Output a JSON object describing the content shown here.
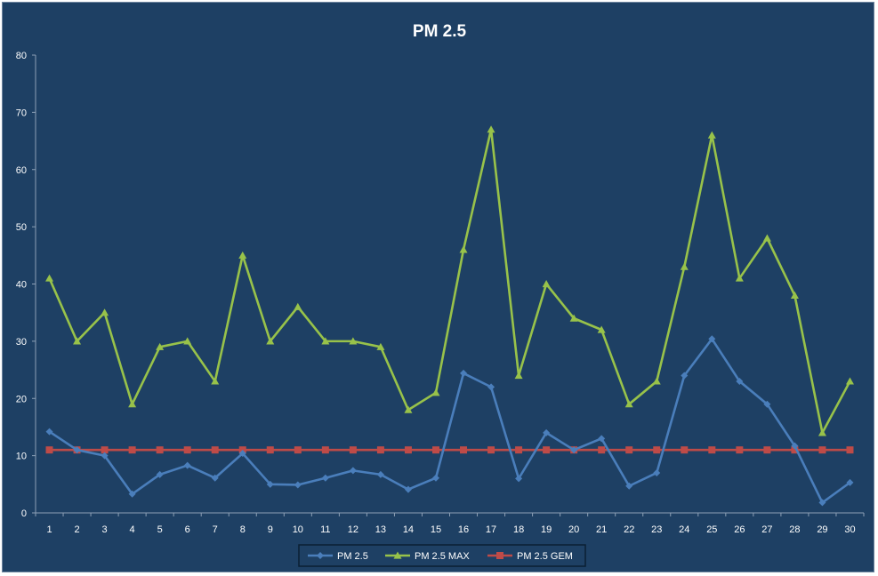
{
  "chart_data": {
    "type": "line",
    "title": "PM 2.5",
    "xlabel": "",
    "ylabel": "",
    "ylim": [
      0,
      80
    ],
    "yticks": [
      0,
      10,
      20,
      30,
      40,
      50,
      60,
      70,
      80
    ],
    "x": [
      1,
      2,
      3,
      4,
      5,
      6,
      7,
      8,
      9,
      10,
      11,
      12,
      13,
      14,
      15,
      16,
      17,
      18,
      19,
      20,
      21,
      22,
      23,
      24,
      25,
      26,
      27,
      28,
      29,
      30
    ],
    "grid": false,
    "legend_position": "bottom",
    "series": [
      {
        "name": "PM 2.5",
        "color": "#4a7ebb",
        "marker": "diamond",
        "values": [
          14.2,
          11,
          10,
          3.3,
          6.7,
          8.3,
          6.1,
          10.4,
          5,
          4.9,
          6.1,
          7.4,
          6.7,
          4.1,
          6.1,
          24.4,
          22,
          6,
          14,
          11,
          13,
          4.7,
          7,
          24,
          30.4,
          23,
          19,
          11.7,
          1.8,
          5.3
        ]
      },
      {
        "name": "PM 2.5 MAX",
        "color": "#98c24a",
        "marker": "triangle",
        "values": [
          41,
          30,
          35,
          19,
          29,
          30,
          23,
          45,
          30,
          36,
          30,
          30,
          29,
          18,
          21,
          46,
          67,
          24,
          40,
          34,
          32,
          19,
          23,
          43,
          66,
          41,
          48,
          38,
          14,
          23
        ]
      },
      {
        "name": "PM 2.5 GEM",
        "color": "#be4b48",
        "marker": "square",
        "values": [
          11,
          11,
          11,
          11,
          11,
          11,
          11,
          11,
          11,
          11,
          11,
          11,
          11,
          11,
          11,
          11,
          11,
          11,
          11,
          11,
          11,
          11,
          11,
          11,
          11,
          11,
          11,
          11,
          11,
          11
        ]
      }
    ]
  },
  "colors": {
    "background": "#1e4064",
    "axis": "#8da0b6",
    "text": "#ffffff"
  }
}
